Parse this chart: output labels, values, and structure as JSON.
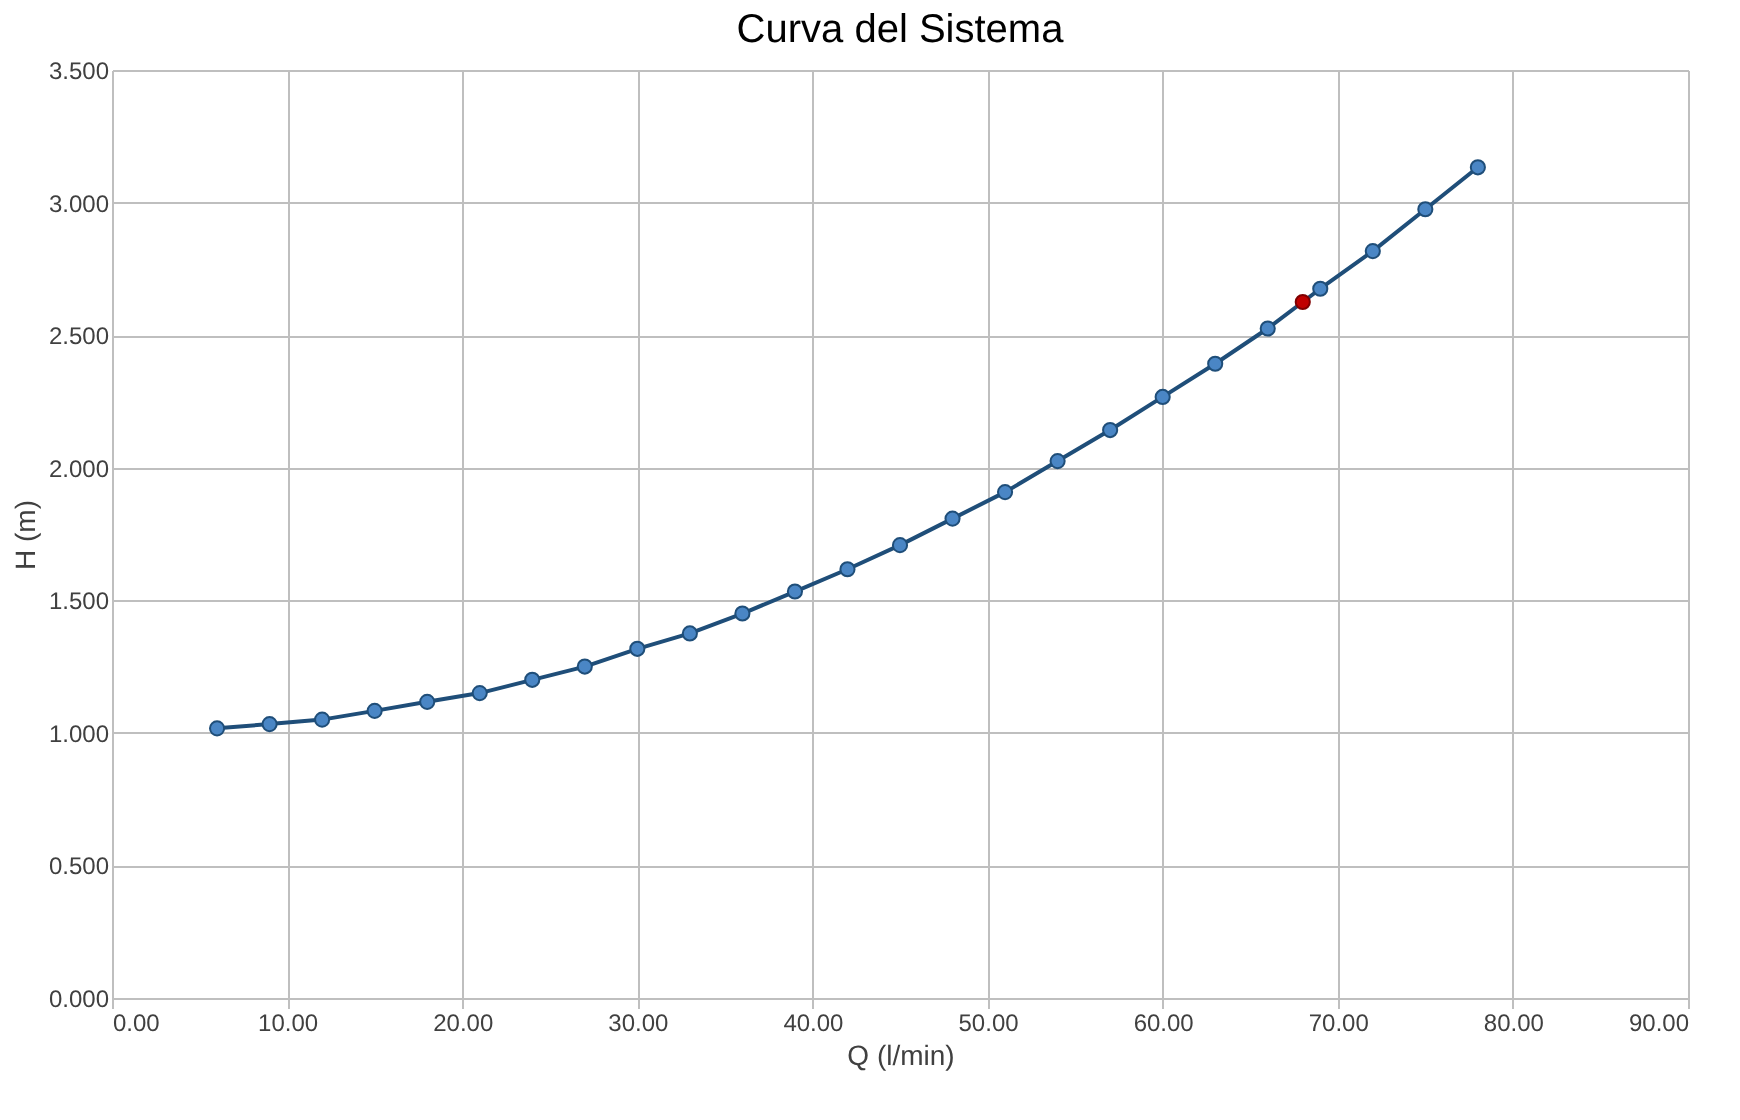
{
  "chart_data": {
    "type": "line",
    "title": "Curva del Sistema",
    "xlabel": "Q (l/min)",
    "ylabel": "H (m)",
    "series": [
      {
        "color": "#1f4e79",
        "marker": "circle",
        "x": [
          6,
          9,
          12,
          15,
          18,
          21,
          24,
          27,
          30,
          33,
          36,
          39,
          42,
          45,
          48,
          51,
          54,
          57,
          60,
          63,
          66,
          69,
          72,
          75,
          78
        ],
        "values": [
          1.017,
          1.033,
          1.05,
          1.083,
          1.117,
          1.15,
          1.2,
          1.25,
          1.317,
          1.375,
          1.45,
          1.533,
          1.617,
          1.708,
          1.808,
          1.908,
          2.025,
          2.142,
          2.267,
          2.392,
          2.525,
          2.675,
          2.817,
          2.975,
          3.133
        ]
      },
      {
        "type": "scatter",
        "color": "#c00000",
        "marker": "circle",
        "x": [
          68
        ],
        "values": [
          2.625
        ]
      }
    ],
    "xlim": [
      0,
      90
    ],
    "ylim": [
      0,
      3.5
    ],
    "xticks": [
      {
        "value": 0,
        "label": "0.00"
      },
      {
        "value": 10,
        "label": "10.00"
      },
      {
        "value": 20,
        "label": "20.00"
      },
      {
        "value": 30,
        "label": "30.00"
      },
      {
        "value": 40,
        "label": "40.00"
      },
      {
        "value": 50,
        "label": "50.00"
      },
      {
        "value": 60,
        "label": "60.00"
      },
      {
        "value": 70,
        "label": "70.00"
      },
      {
        "value": 80,
        "label": "80.00"
      },
      {
        "value": 90,
        "label": "90.00"
      }
    ],
    "yticks": [
      {
        "value": 0,
        "label": "0.000"
      },
      {
        "value": 0.5,
        "label": "0.500"
      },
      {
        "value": 1,
        "label": "1.000"
      },
      {
        "value": 1.5,
        "label": "1.500"
      },
      {
        "value": 2,
        "label": "2.000"
      },
      {
        "value": 2.5,
        "label": "2.500"
      },
      {
        "value": 3,
        "label": "3.000"
      },
      {
        "value": 3.5,
        "label": "3.500"
      }
    ],
    "grid": true,
    "legend": false
  }
}
